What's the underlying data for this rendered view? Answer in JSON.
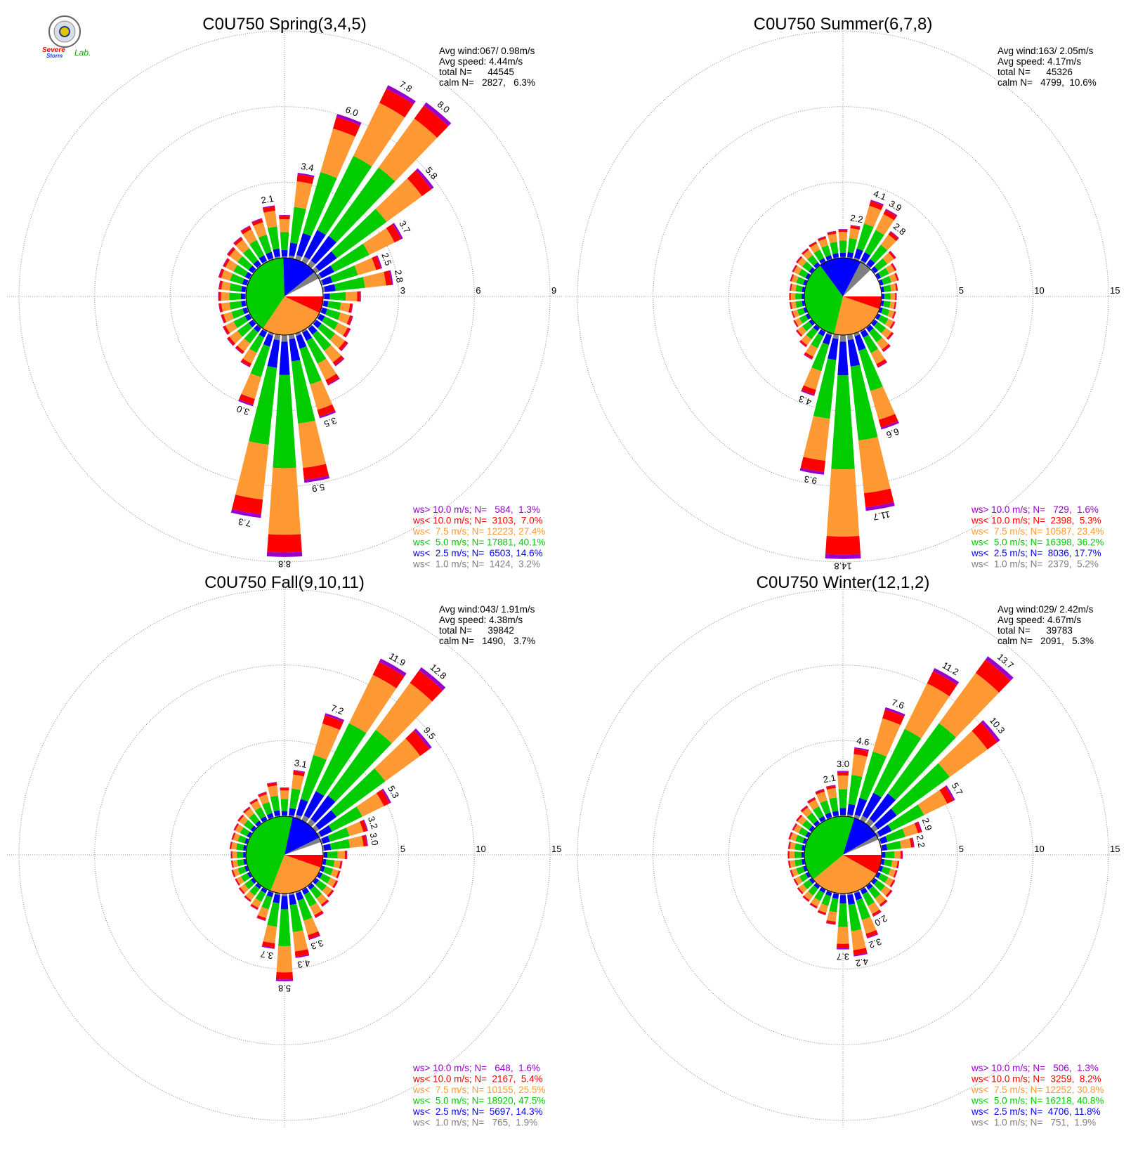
{
  "logo": {
    "line1": "Severe",
    "line2": "Storm",
    "line3": "Lab."
  },
  "colors": {
    "purple": "#9900cc",
    "red": "#ff0000",
    "orange": "#ff9933",
    "green": "#00cc00",
    "blue": "#0000ff",
    "gray": "#808080",
    "white": "#ffffff"
  },
  "chart_data": [
    {
      "type": "wind-rose",
      "title": "C0U750 Spring(3,4,5)",
      "rlim": [
        0,
        9
      ],
      "rings": [
        3,
        6,
        9
      ],
      "stats": [
        "Avg wind:067/ 0.98m/s",
        "Avg speed: 4.44m/s",
        "total N=      44545",
        "calm N=   2827,   6.3%"
      ],
      "legend": [
        {
          "label": "ws> 10.0 m/s; N=   584,  1.3%",
          "color": "purple"
        },
        {
          "label": "ws< 10.0 m/s; N=  3103,  7.0%",
          "color": "red"
        },
        {
          "label": "ws<  7.5 m/s; N= 12223, 27.4%",
          "color": "orange"
        },
        {
          "label": "ws<  5.0 m/s; N= 17881, 40.1%",
          "color": "green"
        },
        {
          "label": "ws<  2.5 m/s; N=  6503, 14.6%",
          "color": "blue"
        },
        {
          "label": "ws<  1.0 m/s; N=  1424,  3.2%",
          "color": "gray"
        }
      ],
      "pie": [
        {
          "color": "red",
          "pct": 7.0
        },
        {
          "color": "orange",
          "pct": 27.4
        },
        {
          "color": "green",
          "pct": 40.1
        },
        {
          "color": "blue",
          "pct": 14.6
        },
        {
          "color": "gray",
          "pct": 3.2
        },
        {
          "color": "white",
          "pct": 7.7
        }
      ],
      "bars": [
        {
          "dir": 0,
          "total": 1.7
        },
        {
          "dir": 10,
          "total": 3.4,
          "label": "3.4"
        },
        {
          "dir": 20,
          "total": 6.0,
          "label": "6.0"
        },
        {
          "dir": 30,
          "total": 7.8,
          "label": "7.8"
        },
        {
          "dir": 40,
          "total": 8.0,
          "label": "8.0"
        },
        {
          "dir": 50,
          "total": 5.8,
          "label": "5.8"
        },
        {
          "dir": 60,
          "total": 3.7,
          "label": "3.7"
        },
        {
          "dir": 70,
          "total": 2.5,
          "label": "2.5"
        },
        {
          "dir": 80,
          "total": 2.8,
          "label": "2.8"
        },
        {
          "dir": 90,
          "total": 1.5
        },
        {
          "dir": 100,
          "total": 1.2
        },
        {
          "dir": 110,
          "total": 1.3
        },
        {
          "dir": 120,
          "total": 1.4
        },
        {
          "dir": 130,
          "total": 1.6
        },
        {
          "dir": 140,
          "total": 1.9
        },
        {
          "dir": 150,
          "total": 2.4
        },
        {
          "dir": 160,
          "total": 3.5,
          "label": "3.5"
        },
        {
          "dir": 170,
          "total": 5.9,
          "label": "5.9"
        },
        {
          "dir": 180,
          "total": 8.8,
          "label": "8.8"
        },
        {
          "dir": 190,
          "total": 7.3,
          "label": "7.3"
        },
        {
          "dir": 200,
          "total": 3.0,
          "label": "3.0"
        },
        {
          "dir": 210,
          "total": 1.6
        },
        {
          "dir": 220,
          "total": 1.3
        },
        {
          "dir": 230,
          "total": 1.3
        },
        {
          "dir": 240,
          "total": 1.2
        },
        {
          "dir": 250,
          "total": 1.1
        },
        {
          "dir": 260,
          "total": 1.1
        },
        {
          "dir": 270,
          "total": 1.1
        },
        {
          "dir": 280,
          "total": 1.1
        },
        {
          "dir": 290,
          "total": 1.2
        },
        {
          "dir": 300,
          "total": 1.2
        },
        {
          "dir": 310,
          "total": 1.3
        },
        {
          "dir": 320,
          "total": 1.4
        },
        {
          "dir": 330,
          "total": 1.6
        },
        {
          "dir": 340,
          "total": 1.7
        },
        {
          "dir": 350,
          "total": 2.1,
          "label": "2.1"
        }
      ]
    },
    {
      "type": "wind-rose",
      "title": "C0U750 Summer(6,7,8)",
      "rlim": [
        0,
        15
      ],
      "rings": [
        5,
        10,
        15
      ],
      "stats": [
        "Avg wind:163/ 2.05m/s",
        "Avg speed: 4.17m/s",
        "total N=      45326",
        "calm N=   4799,  10.6%"
      ],
      "legend": [
        {
          "label": "ws> 10.0 m/s; N=   729,  1.6%",
          "color": "purple"
        },
        {
          "label": "ws< 10.0 m/s; N=  2398,  5.3%",
          "color": "red"
        },
        {
          "label": "ws<  7.5 m/s; N= 10587, 23.4%",
          "color": "orange"
        },
        {
          "label": "ws<  5.0 m/s; N= 16398, 36.2%",
          "color": "green"
        },
        {
          "label": "ws<  2.5 m/s; N=  8036, 17.7%",
          "color": "blue"
        },
        {
          "label": "ws<  1.0 m/s; N=  2379,  5.2%",
          "color": "gray"
        }
      ],
      "pie": [
        {
          "color": "red",
          "pct": 5.3
        },
        {
          "color": "orange",
          "pct": 23.4
        },
        {
          "color": "green",
          "pct": 36.2
        },
        {
          "color": "blue",
          "pct": 17.7
        },
        {
          "color": "gray",
          "pct": 5.2
        },
        {
          "color": "white",
          "pct": 12.2
        }
      ],
      "bars": [
        {
          "dir": 0,
          "total": 1.9
        },
        {
          "dir": 10,
          "total": 2.2,
          "label": "2.2"
        },
        {
          "dir": 20,
          "total": 4.1,
          "label": "4.1"
        },
        {
          "dir": 30,
          "total": 3.9,
          "label": "3.9"
        },
        {
          "dir": 40,
          "total": 2.8,
          "label": "2.8"
        },
        {
          "dir": 50,
          "total": 1.8
        },
        {
          "dir": 60,
          "total": 1.4
        },
        {
          "dir": 70,
          "total": 1.3
        },
        {
          "dir": 80,
          "total": 1.1
        },
        {
          "dir": 90,
          "total": 1.0
        },
        {
          "dir": 100,
          "total": 1.0
        },
        {
          "dir": 110,
          "total": 1.1
        },
        {
          "dir": 120,
          "total": 1.3
        },
        {
          "dir": 130,
          "total": 1.6
        },
        {
          "dir": 140,
          "total": 2.0
        },
        {
          "dir": 150,
          "total": 2.7
        },
        {
          "dir": 160,
          "total": 6.6,
          "label": "6.6"
        },
        {
          "dir": 170,
          "total": 11.7,
          "label": "11.7"
        },
        {
          "dir": 180,
          "total": 14.8,
          "label": "14.8"
        },
        {
          "dir": 190,
          "total": 9.3,
          "label": "9.3"
        },
        {
          "dir": 200,
          "total": 4.3,
          "label": "4.3"
        },
        {
          "dir": 210,
          "total": 2.1
        },
        {
          "dir": 220,
          "total": 1.6
        },
        {
          "dir": 230,
          "total": 1.3
        },
        {
          "dir": 240,
          "total": 1.1
        },
        {
          "dir": 250,
          "total": 1.0
        },
        {
          "dir": 260,
          "total": 1.0
        },
        {
          "dir": 270,
          "total": 1.0
        },
        {
          "dir": 280,
          "total": 1.0
        },
        {
          "dir": 290,
          "total": 1.1
        },
        {
          "dir": 300,
          "total": 1.2
        },
        {
          "dir": 310,
          "total": 1.3
        },
        {
          "dir": 320,
          "total": 1.4
        },
        {
          "dir": 330,
          "total": 1.5
        },
        {
          "dir": 340,
          "total": 1.6
        },
        {
          "dir": 350,
          "total": 1.8
        }
      ]
    },
    {
      "type": "wind-rose",
      "title": "C0U750 Fall(9,10,11)",
      "rlim": [
        0,
        15
      ],
      "rings": [
        5,
        10,
        15
      ],
      "stats": [
        "Avg wind:043/ 1.91m/s",
        "Avg speed: 4.38m/s",
        "total N=      39842",
        "calm N=   1490,   3.7%"
      ],
      "legend": [
        {
          "label": "ws> 10.0 m/s; N=   648,  1.6%",
          "color": "purple"
        },
        {
          "label": "ws< 10.0 m/s; N=  2167,  5.4%",
          "color": "red"
        },
        {
          "label": "ws<  7.5 m/s; N= 10155, 25.5%",
          "color": "orange"
        },
        {
          "label": "ws<  5.0 m/s; N= 18920, 47.5%",
          "color": "green"
        },
        {
          "label": "ws<  2.5 m/s; N=  5697, 14.3%",
          "color": "blue"
        },
        {
          "label": "ws<  1.0 m/s; N=   765,  1.9%",
          "color": "gray"
        }
      ],
      "pie": [
        {
          "color": "red",
          "pct": 5.4
        },
        {
          "color": "orange",
          "pct": 25.5
        },
        {
          "color": "green",
          "pct": 47.5
        },
        {
          "color": "blue",
          "pct": 14.3
        },
        {
          "color": "gray",
          "pct": 1.9
        },
        {
          "color": "white",
          "pct": 5.4
        }
      ],
      "bars": [
        {
          "dir": 0,
          "total": 1.9
        },
        {
          "dir": 10,
          "total": 3.1,
          "label": "3.1"
        },
        {
          "dir": 20,
          "total": 7.2,
          "label": "7.2"
        },
        {
          "dir": 30,
          "total": 11.9,
          "label": "11.9"
        },
        {
          "dir": 40,
          "total": 12.8,
          "label": "12.8"
        },
        {
          "dir": 50,
          "total": 9.5,
          "label": "9.5"
        },
        {
          "dir": 60,
          "total": 5.3,
          "label": "5.3"
        },
        {
          "dir": 70,
          "total": 3.2,
          "label": "3.2"
        },
        {
          "dir": 80,
          "total": 3.0,
          "label": "3.0"
        },
        {
          "dir": 90,
          "total": 1.6
        },
        {
          "dir": 100,
          "total": 1.3
        },
        {
          "dir": 110,
          "total": 1.3
        },
        {
          "dir": 120,
          "total": 1.4
        },
        {
          "dir": 130,
          "total": 1.5
        },
        {
          "dir": 140,
          "total": 1.7
        },
        {
          "dir": 150,
          "total": 2.1
        },
        {
          "dir": 160,
          "total": 3.3,
          "label": "3.3"
        },
        {
          "dir": 170,
          "total": 4.3,
          "label": "4.3"
        },
        {
          "dir": 180,
          "total": 5.8,
          "label": "5.8"
        },
        {
          "dir": 190,
          "total": 3.7,
          "label": "3.7"
        },
        {
          "dir": 200,
          "total": 2.0
        },
        {
          "dir": 210,
          "total": 1.5
        },
        {
          "dir": 220,
          "total": 1.3
        },
        {
          "dir": 230,
          "total": 1.2
        },
        {
          "dir": 240,
          "total": 1.1
        },
        {
          "dir": 250,
          "total": 1.1
        },
        {
          "dir": 260,
          "total": 1.0
        },
        {
          "dir": 270,
          "total": 1.0
        },
        {
          "dir": 280,
          "total": 1.1
        },
        {
          "dir": 290,
          "total": 1.1
        },
        {
          "dir": 300,
          "total": 1.2
        },
        {
          "dir": 310,
          "total": 1.3
        },
        {
          "dir": 320,
          "total": 1.4
        },
        {
          "dir": 330,
          "total": 1.6
        },
        {
          "dir": 340,
          "total": 1.8
        },
        {
          "dir": 350,
          "total": 2.3
        }
      ]
    },
    {
      "type": "wind-rose",
      "title": "C0U750 Winter(12,1,2)",
      "rlim": [
        0,
        15
      ],
      "rings": [
        5,
        10,
        15
      ],
      "stats": [
        "Avg wind:029/ 2.42m/s",
        "Avg speed: 4.67m/s",
        "total N=      39783",
        "calm N=   2091,   5.3%"
      ],
      "legend": [
        {
          "label": "ws> 10.0 m/s; N=   506,  1.3%",
          "color": "purple"
        },
        {
          "label": "ws< 10.0 m/s; N=  3259,  8.2%",
          "color": "red"
        },
        {
          "label": "ws<  7.5 m/s; N= 12252, 30.8%",
          "color": "orange"
        },
        {
          "label": "ws<  5.0 m/s; N= 16218, 40.8%",
          "color": "green"
        },
        {
          "label": "ws<  2.5 m/s; N=  4706, 11.8%",
          "color": "blue"
        },
        {
          "label": "ws<  1.0 m/s; N=   751,  1.9%",
          "color": "gray"
        }
      ],
      "pie": [
        {
          "color": "red",
          "pct": 8.2
        },
        {
          "color": "orange",
          "pct": 30.8
        },
        {
          "color": "green",
          "pct": 40.8
        },
        {
          "color": "blue",
          "pct": 11.8
        },
        {
          "color": "gray",
          "pct": 1.9
        },
        {
          "color": "white",
          "pct": 6.5
        }
      ],
      "bars": [
        {
          "dir": 0,
          "total": 3.0,
          "label": "3.0"
        },
        {
          "dir": 10,
          "total": 4.6,
          "label": "4.6"
        },
        {
          "dir": 20,
          "total": 7.6,
          "label": "7.6"
        },
        {
          "dir": 30,
          "total": 11.2,
          "label": "11.2"
        },
        {
          "dir": 40,
          "total": 13.7,
          "label": "13.7"
        },
        {
          "dir": 50,
          "total": 10.3,
          "label": "10.3"
        },
        {
          "dir": 60,
          "total": 5.7,
          "label": "5.7"
        },
        {
          "dir": 70,
          "total": 2.9,
          "label": "2.9"
        },
        {
          "dir": 80,
          "total": 2.2,
          "label": "2.2"
        },
        {
          "dir": 90,
          "total": 1.4
        },
        {
          "dir": 100,
          "total": 1.2
        },
        {
          "dir": 110,
          "total": 1.2
        },
        {
          "dir": 120,
          "total": 1.3
        },
        {
          "dir": 130,
          "total": 1.5
        },
        {
          "dir": 140,
          "total": 1.7
        },
        {
          "dir": 150,
          "total": 2.0,
          "label": "2.0"
        },
        {
          "dir": 160,
          "total": 3.2,
          "label": "3.2"
        },
        {
          "dir": 170,
          "total": 4.2,
          "label": "4.2"
        },
        {
          "dir": 180,
          "total": 3.7,
          "label": "3.7"
        },
        {
          "dir": 190,
          "total": 2.1
        },
        {
          "dir": 200,
          "total": 1.6
        },
        {
          "dir": 210,
          "total": 1.4
        },
        {
          "dir": 220,
          "total": 1.3
        },
        {
          "dir": 230,
          "total": 1.2
        },
        {
          "dir": 240,
          "total": 1.1
        },
        {
          "dir": 250,
          "total": 1.1
        },
        {
          "dir": 260,
          "total": 1.1
        },
        {
          "dir": 270,
          "total": 1.1
        },
        {
          "dir": 280,
          "total": 1.1
        },
        {
          "dir": 290,
          "total": 1.2
        },
        {
          "dir": 300,
          "total": 1.2
        },
        {
          "dir": 310,
          "total": 1.3
        },
        {
          "dir": 320,
          "total": 1.5
        },
        {
          "dir": 330,
          "total": 1.7
        },
        {
          "dir": 340,
          "total": 2.0
        },
        {
          "dir": 350,
          "total": 2.1,
          "label": "2.1"
        }
      ]
    }
  ]
}
